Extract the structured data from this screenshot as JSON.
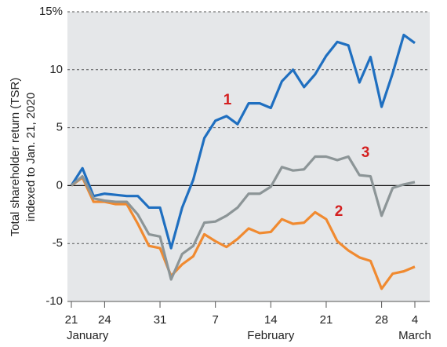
{
  "chart_data": {
    "type": "line",
    "ylabel": [
      "Total shareholder return (TSR)",
      "indexed to Jan. 21, 2020"
    ],
    "x": [
      0,
      1,
      2,
      3,
      4,
      5,
      6,
      7,
      8,
      9,
      10,
      11,
      12,
      13,
      14,
      15,
      16,
      17,
      18,
      19,
      20,
      21,
      22,
      23,
      24,
      25,
      26,
      27,
      28,
      29,
      30,
      31
    ],
    "xlim": [
      0,
      31
    ],
    "xticks": [
      {
        "value": 0,
        "label": "21"
      },
      {
        "value": 3,
        "label": "24"
      },
      {
        "value": 8,
        "label": "31"
      },
      {
        "value": 13,
        "label": "7"
      },
      {
        "value": 18,
        "label": "14"
      },
      {
        "value": 23,
        "label": "21"
      },
      {
        "value": 28,
        "label": "28"
      },
      {
        "value": 31,
        "label": "4"
      }
    ],
    "x_groups": [
      {
        "value": 0,
        "label": "January"
      },
      {
        "value": 18,
        "label": "February"
      },
      {
        "value": 31,
        "label": "March"
      }
    ],
    "ylim": [
      -10,
      15
    ],
    "yticks": [
      -10,
      -5,
      0,
      5,
      10,
      {
        "value": 15,
        "label": "15%"
      }
    ],
    "grid": true,
    "series": [
      {
        "name": "1",
        "color": "#1f6fc0",
        "values": [
          0,
          1.5,
          -0.9,
          -0.7,
          -0.8,
          -0.9,
          -0.9,
          -1.9,
          -1.9,
          -5.4,
          -1.9,
          0.5,
          4.1,
          5.6,
          6.0,
          5.3,
          7.1,
          7.1,
          6.7,
          9.0,
          10.0,
          8.5,
          9.6,
          11.2,
          12.4,
          12.1,
          8.9,
          11.1,
          6.8,
          9.7,
          13.0,
          12.3
        ]
      },
      {
        "name": "2",
        "color": "#f08a30",
        "values": [
          0,
          0.7,
          -1.4,
          -1.4,
          -1.6,
          -1.6,
          -3.3,
          -5.2,
          -5.4,
          -7.8,
          -6.8,
          -6.1,
          -4.2,
          -4.8,
          -5.3,
          -4.6,
          -3.7,
          -4.1,
          -4.0,
          -2.9,
          -3.3,
          -3.2,
          -2.3,
          -2.9,
          -4.8,
          -5.6,
          -6.2,
          -6.5,
          -8.9,
          -7.6,
          -7.4,
          -7.0
        ]
      },
      {
        "name": "3",
        "color": "#8c9597",
        "values": [
          0,
          0.8,
          -1.1,
          -1.3,
          -1.4,
          -1.4,
          -2.5,
          -4.2,
          -4.4,
          -8.1,
          -5.9,
          -5.2,
          -3.2,
          -3.1,
          -2.6,
          -1.9,
          -0.7,
          -0.7,
          -0.1,
          1.6,
          1.3,
          1.4,
          2.5,
          2.5,
          2.2,
          2.5,
          0.9,
          0.8,
          -2.6,
          -0.2,
          0.1,
          0.3
        ]
      }
    ]
  }
}
